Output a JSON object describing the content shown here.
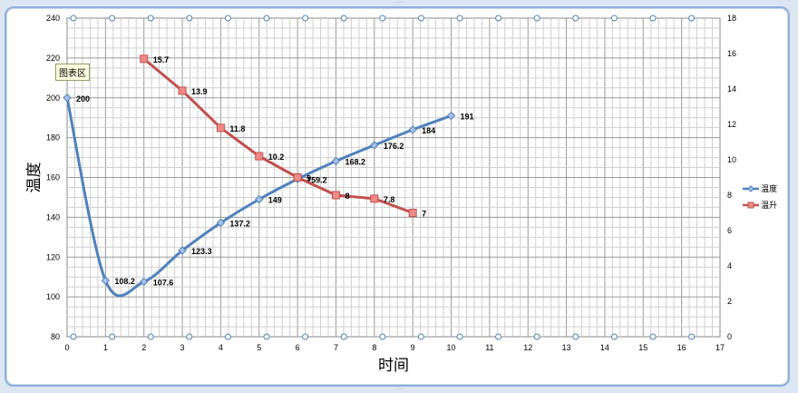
{
  "tooltip": "图表区",
  "chart_data": {
    "type": "line",
    "xlabel": "时间",
    "ylabel": "温度",
    "xlim": [
      0,
      17
    ],
    "ylim": [
      80,
      240
    ],
    "y2lim": [
      0,
      18
    ],
    "x_ticks": [
      0,
      1,
      2,
      3,
      4,
      5,
      6,
      7,
      8,
      9,
      10,
      11,
      12,
      13,
      14,
      15,
      16,
      17
    ],
    "y_ticks": [
      80,
      100,
      120,
      140,
      160,
      180,
      200,
      220,
      240
    ],
    "y2_ticks": [
      0,
      2,
      4,
      6,
      8,
      10,
      12,
      14,
      16,
      18
    ],
    "grid": true,
    "legend_position": "right",
    "series": [
      {
        "name": "温度",
        "axis": "left",
        "color": "#4f81bd",
        "marker": "diamond",
        "smooth": true,
        "x": [
          0,
          1,
          2,
          3,
          4,
          5,
          6,
          7,
          8,
          9,
          10
        ],
        "y": [
          200,
          108.2,
          107.6,
          123.3,
          137.2,
          149,
          159.2,
          168.2,
          176.2,
          184,
          191
        ],
        "labels": [
          "200",
          "108.2",
          "107.6",
          "123.3",
          "137.2",
          "149",
          "159.2",
          "168.2",
          "176.2",
          "184",
          "191"
        ]
      },
      {
        "name": "温升",
        "axis": "right",
        "color": "#c0504d",
        "marker": "square",
        "smooth": false,
        "x": [
          2,
          3,
          4,
          5,
          6,
          7,
          8,
          9
        ],
        "y": [
          15.7,
          13.9,
          11.8,
          10.2,
          9,
          8,
          7.8,
          7
        ],
        "labels": [
          "15.7",
          "13.9",
          "11.8",
          "10.2",
          "9",
          "8",
          "7.8",
          "7"
        ]
      }
    ]
  }
}
